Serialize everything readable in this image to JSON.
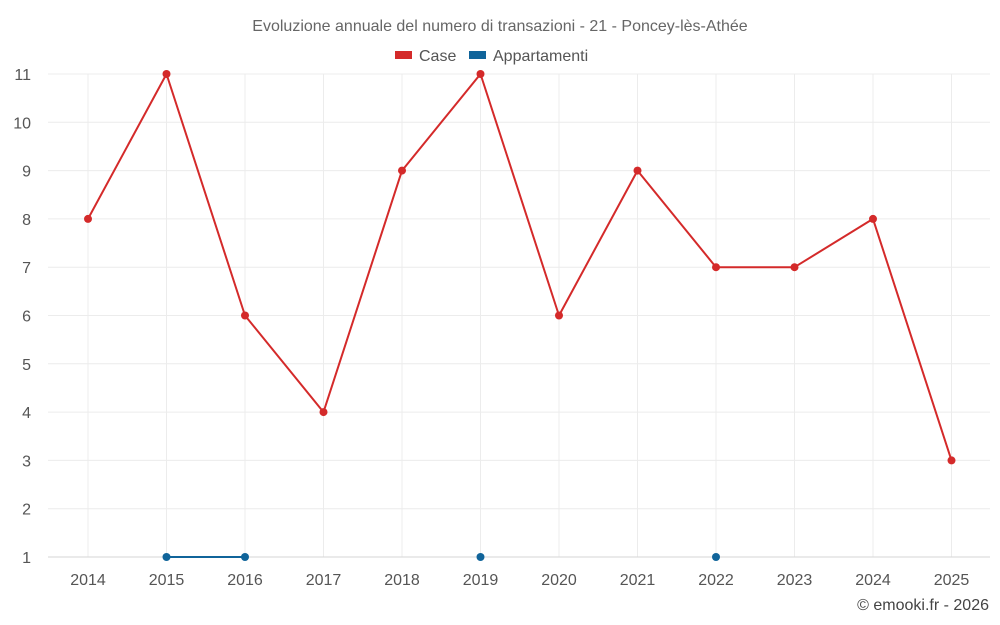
{
  "chart_data": {
    "type": "line",
    "title": "Evoluzione annuale del numero di transazioni - 21 - Poncey-lès-Athée",
    "categories": [
      "2014",
      "2015",
      "2016",
      "2017",
      "2018",
      "2019",
      "2020",
      "2021",
      "2022",
      "2023",
      "2024",
      "2025"
    ],
    "series": [
      {
        "name": "Case",
        "color": "#d42a2a",
        "values": [
          8,
          11,
          6,
          4,
          9,
          11,
          6,
          9,
          7,
          7,
          8,
          3
        ]
      },
      {
        "name": "Appartamenti",
        "color": "#10649a",
        "values": [
          null,
          1,
          1,
          null,
          null,
          1,
          null,
          null,
          1,
          null,
          null,
          null
        ]
      }
    ],
    "ylim": [
      1,
      11
    ],
    "yticks": [
      1,
      2,
      3,
      4,
      5,
      6,
      7,
      8,
      9,
      10,
      11
    ],
    "grid": true,
    "legend_position": "top-center"
  },
  "credit": "© emooki.fr - 2026"
}
